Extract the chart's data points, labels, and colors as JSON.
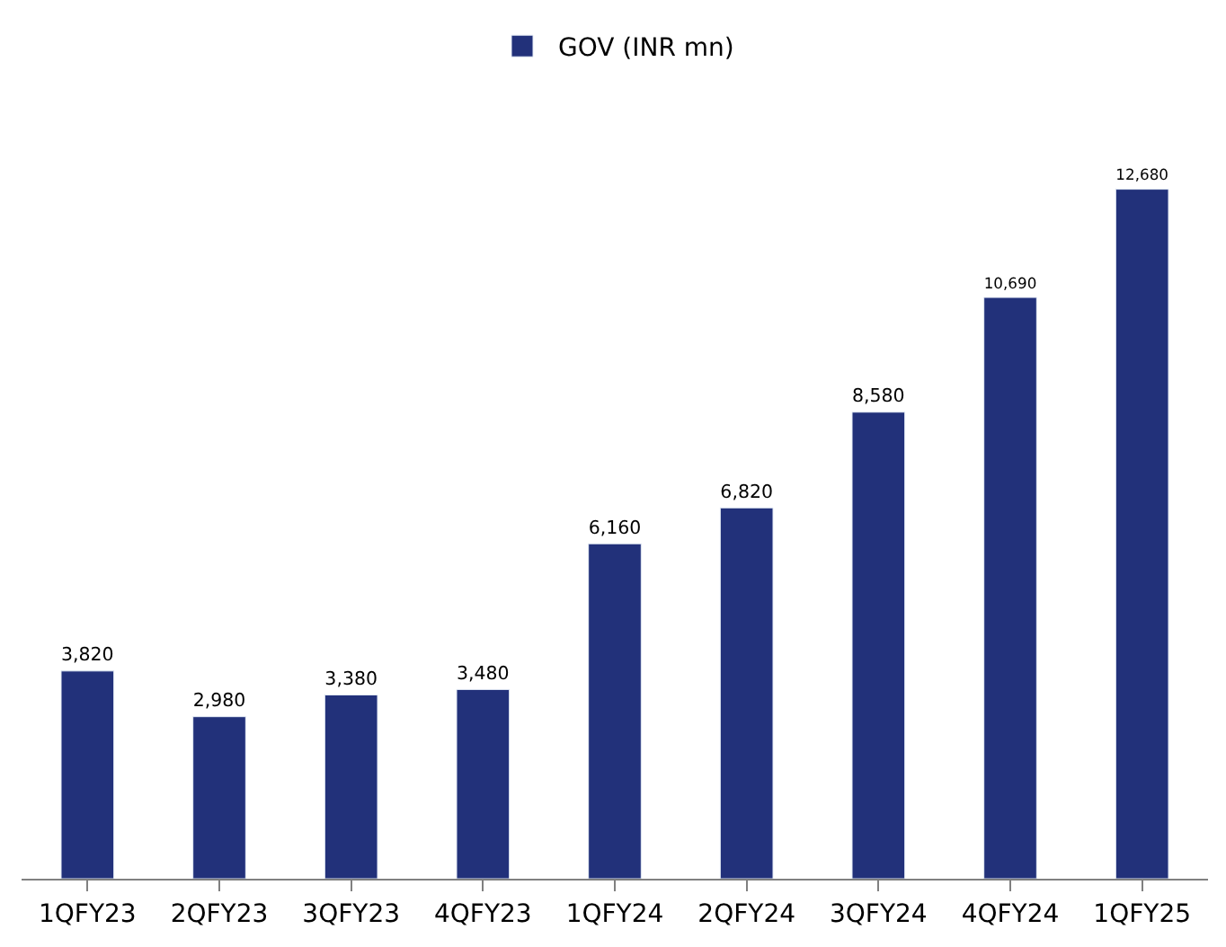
{
  "chart_data": {
    "type": "bar",
    "categories": [
      "1QFY23",
      "2QFY23",
      "3QFY23",
      "4QFY23",
      "1QFY24",
      "2QFY24",
      "3QFY24",
      "4QFY24",
      "1QFY25"
    ],
    "series": [
      {
        "name": "GOV (INR mn)",
        "color": "#22317a",
        "values": [
          3820,
          2980,
          3380,
          3480,
          6160,
          6820,
          8580,
          10690,
          12680
        ],
        "value_labels": [
          "3,820",
          "2,980",
          "3,380",
          "3,480",
          "6,160",
          "6,820",
          "8,580",
          "10,690",
          "12,680"
        ]
      }
    ],
    "legend": "top"
  }
}
